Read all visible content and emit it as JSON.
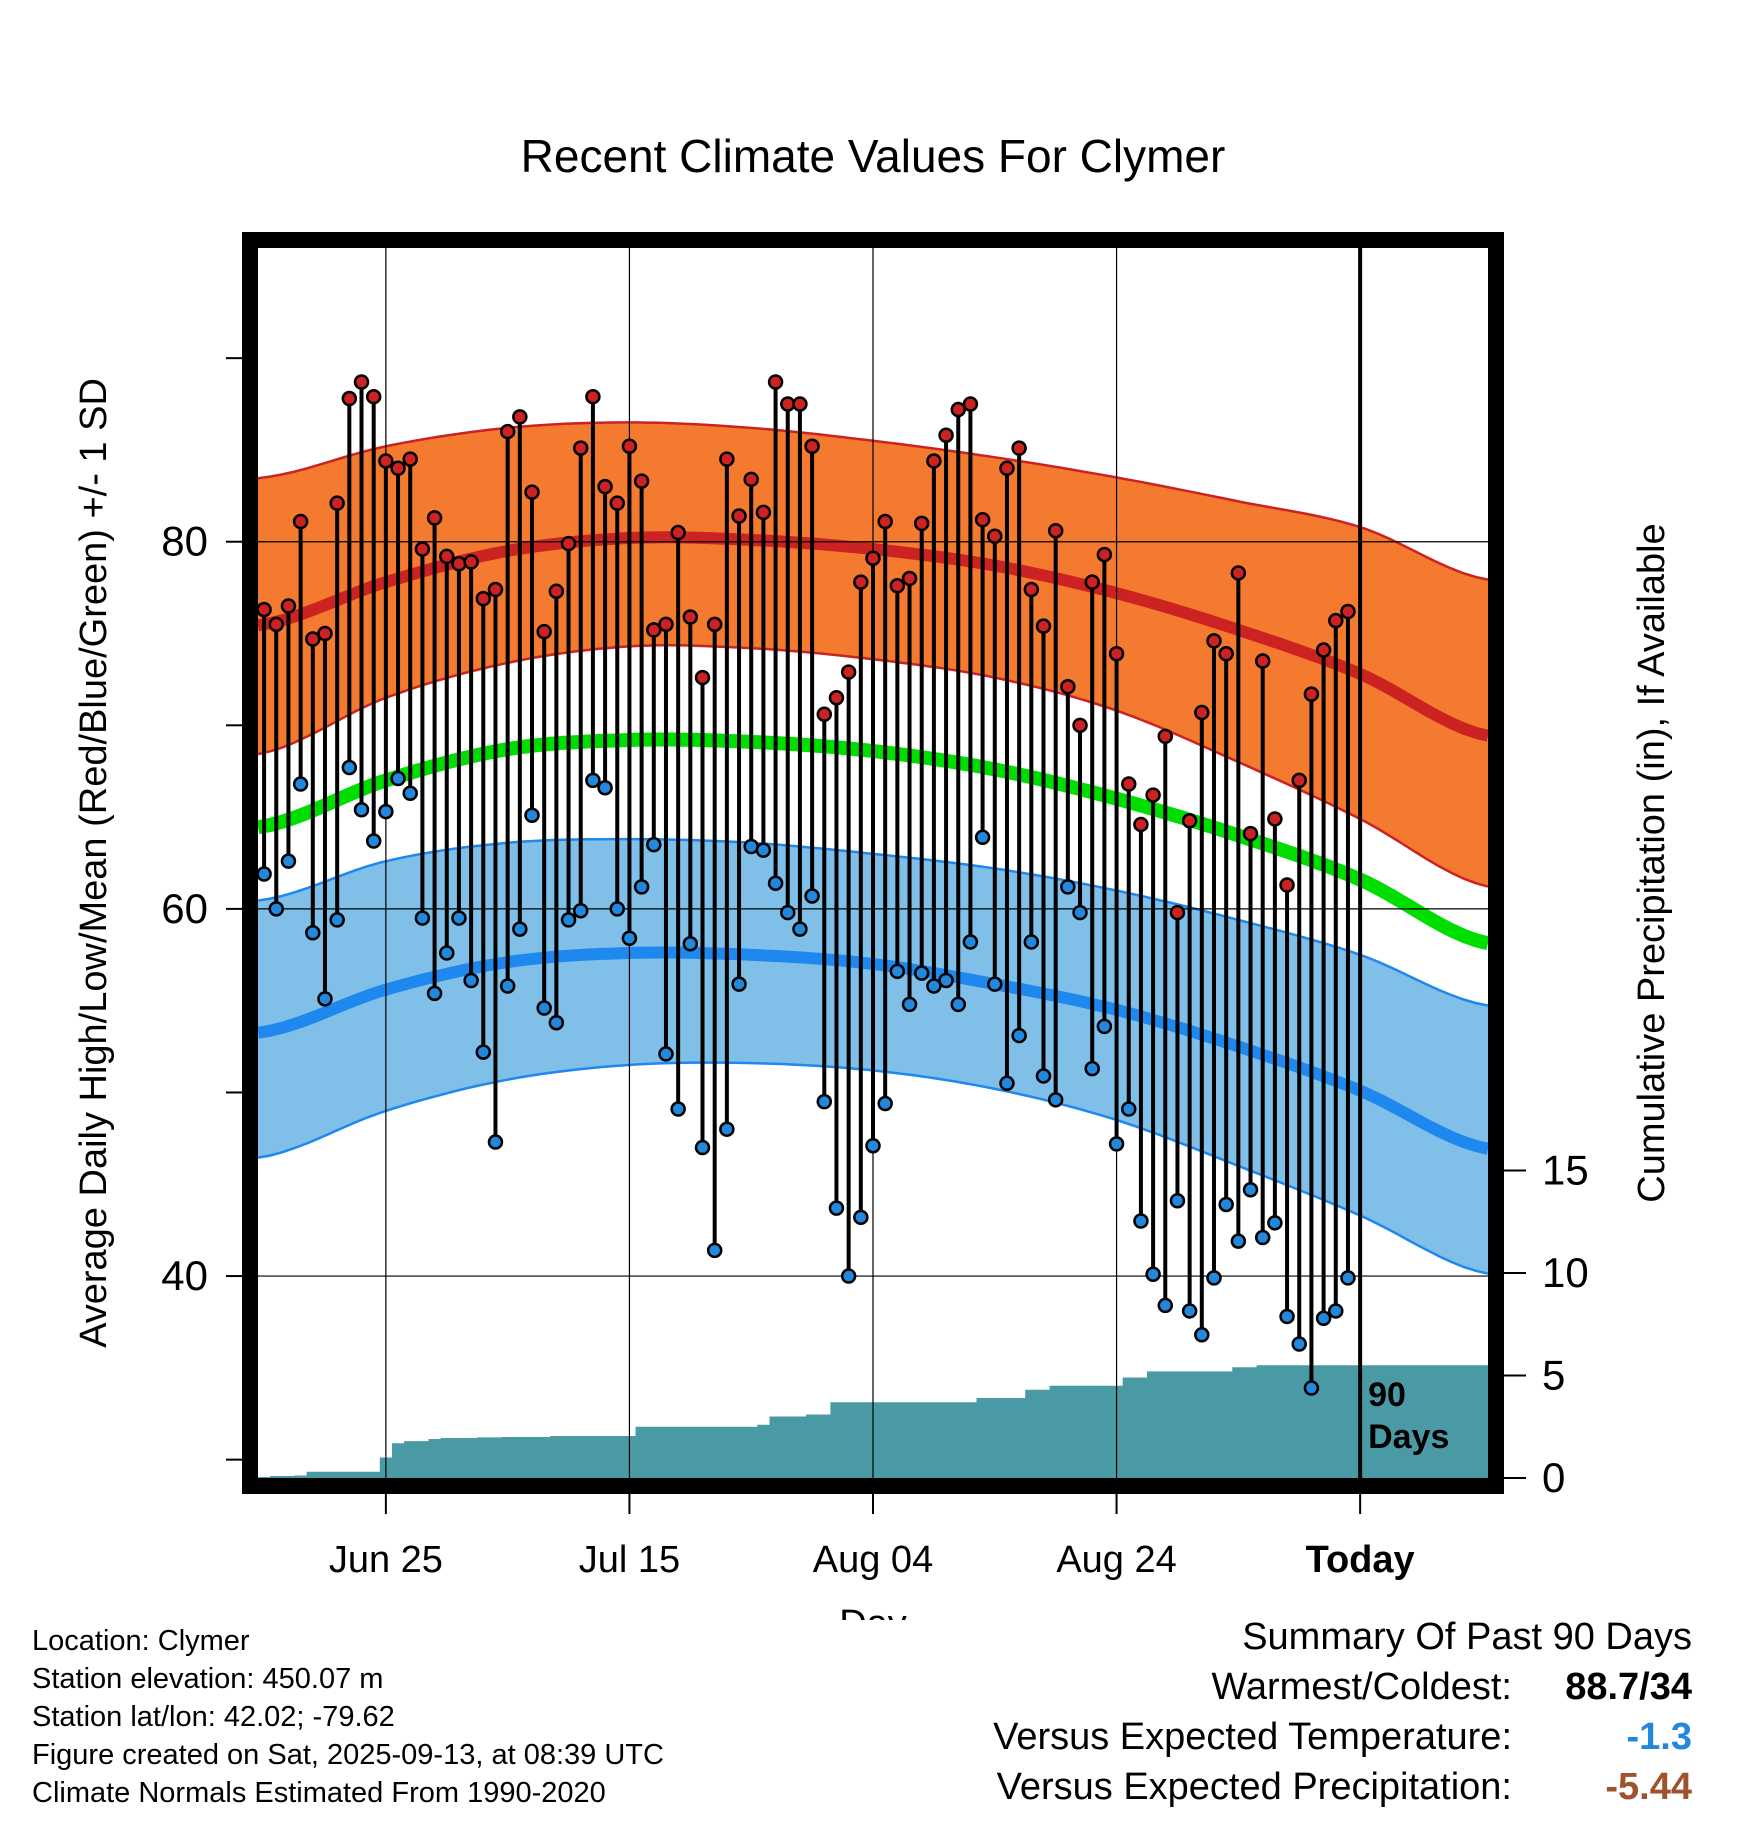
{
  "chart_data": {
    "type": "line",
    "title": "Recent Climate Values For Clymer",
    "xlabel": "Day",
    "ylabel": "Average Daily High/Low/Mean (Red/Blue/Green) +/- 1 SD",
    "y2label": "Cumulative Precipitation (in), If Available",
    "ylim": [
      29,
      96
    ],
    "y2lim": [
      0,
      60
    ],
    "yticks": [
      40,
      60,
      80
    ],
    "y2ticks": [
      0,
      5,
      10,
      15
    ],
    "xlim": [
      -0.5,
      100.5
    ],
    "xticks": [
      {
        "day": 10,
        "label": "Jun 25"
      },
      {
        "day": 30,
        "label": "Jul 15"
      },
      {
        "day": 50,
        "label": "Aug 04"
      },
      {
        "day": 70,
        "label": "Aug 24"
      },
      {
        "day": 90,
        "label": "Today"
      }
    ],
    "today_day": 90,
    "today_label_line1": "90",
    "today_label_line2": "Days",
    "grid": true,
    "normals_days": [
      0,
      10,
      20,
      30,
      40,
      50,
      60,
      70,
      80,
      90,
      100
    ],
    "normal_high": [
      75.5,
      77.8,
      79.5,
      80.2,
      80.1,
      79.6,
      78.7,
      77.2,
      75.2,
      72.8,
      69.5
    ],
    "normal_high_upper": [
      83.5,
      85.2,
      86.2,
      86.5,
      86.2,
      85.5,
      84.6,
      83.5,
      82.2,
      80.8,
      78.0
    ],
    "normal_high_lower": [
      68.5,
      71.5,
      73.4,
      74.3,
      74.2,
      73.6,
      72.6,
      70.8,
      68.0,
      64.9,
      61.3
    ],
    "normal_mean": [
      64.5,
      67.0,
      68.7,
      69.2,
      69.1,
      68.6,
      67.6,
      66.0,
      64.0,
      61.6,
      58.2
    ],
    "normal_low": [
      53.3,
      55.6,
      57.1,
      57.6,
      57.5,
      57.0,
      55.9,
      54.5,
      52.5,
      50.1,
      47.0
    ],
    "normal_low_upper": [
      60.5,
      62.6,
      63.6,
      63.8,
      63.6,
      63.0,
      62.2,
      61.0,
      59.4,
      57.5,
      54.8
    ],
    "normal_low_lower": [
      46.5,
      49.0,
      50.7,
      51.5,
      51.6,
      51.2,
      50.2,
      48.5,
      46.0,
      43.3,
      40.2
    ],
    "series": [
      {
        "name": "Daily High",
        "color": "#cc2222",
        "values": [
          76.3,
          75.5,
          76.5,
          81.1,
          74.7,
          75.0,
          82.1,
          87.8,
          88.7,
          87.9,
          84.4,
          84.0,
          84.5,
          79.6,
          81.3,
          79.2,
          78.8,
          78.9,
          76.9,
          77.4,
          86.0,
          86.8,
          82.7,
          75.1,
          77.3,
          79.9,
          85.1,
          87.9,
          83.0,
          82.1,
          85.2,
          83.3,
          75.2,
          75.5,
          80.5,
          75.9,
          72.6,
          75.5,
          84.5,
          81.4,
          83.4,
          81.6,
          88.7,
          87.5,
          87.5,
          85.2,
          70.6,
          71.5,
          72.9,
          77.8,
          79.1,
          81.1,
          77.6,
          78.0,
          81.0,
          84.4,
          85.8,
          87.2,
          87.5,
          81.2,
          80.3,
          84.0,
          85.1,
          77.4,
          75.4,
          80.6,
          72.1,
          70.0,
          77.8,
          79.3,
          73.9,
          66.8,
          64.6,
          66.2,
          69.4,
          59.8,
          64.8,
          70.7,
          74.6,
          73.9,
          78.3,
          64.1,
          73.5,
          64.9,
          61.3,
          67.0,
          71.7,
          74.1,
          75.7,
          76.2
        ]
      },
      {
        "name": "Daily Low",
        "color": "#2288dd",
        "values": [
          61.9,
          60.0,
          62.6,
          66.8,
          58.7,
          55.1,
          59.4,
          67.7,
          65.4,
          63.7,
          65.3,
          67.1,
          66.3,
          59.5,
          55.4,
          57.6,
          59.5,
          56.1,
          52.2,
          47.3,
          55.8,
          58.9,
          65.1,
          54.6,
          53.8,
          59.4,
          59.9,
          67.0,
          66.6,
          60.0,
          58.4,
          61.2,
          63.5,
          52.1,
          49.1,
          58.1,
          47.0,
          41.4,
          48.0,
          55.9,
          63.4,
          63.2,
          61.4,
          59.8,
          58.9,
          60.7,
          49.5,
          43.7,
          40.0,
          43.2,
          47.1,
          49.4,
          56.6,
          54.8,
          56.5,
          55.8,
          56.1,
          54.8,
          58.2,
          63.9,
          55.9,
          50.5,
          53.1,
          58.2,
          50.9,
          49.6,
          61.2,
          59.8,
          51.3,
          53.6,
          47.2,
          49.1,
          43.0,
          40.1,
          38.4,
          44.1,
          38.1,
          36.8,
          39.9,
          43.9,
          41.9,
          44.7,
          42.1,
          42.9,
          37.8,
          36.3,
          33.9,
          37.7,
          38.1,
          39.9
        ]
      },
      {
        "name": "Cumulative Precipitation",
        "color": "#4a9aa5",
        "values": [
          0.05,
          0.1,
          0.1,
          0.12,
          0.3,
          0.3,
          0.3,
          0.3,
          0.3,
          0.3,
          1.0,
          1.7,
          1.8,
          1.8,
          1.9,
          1.95,
          1.95,
          1.95,
          1.98,
          1.98,
          2.0,
          2.0,
          2.0,
          2.0,
          2.05,
          2.05,
          2.05,
          2.05,
          2.05,
          2.05,
          2.05,
          2.5,
          2.5,
          2.5,
          2.5,
          2.5,
          2.5,
          2.5,
          2.5,
          2.5,
          2.5,
          2.6,
          3.0,
          3.0,
          3.0,
          3.1,
          3.1,
          3.7,
          3.7,
          3.7,
          3.7,
          3.7,
          3.7,
          3.7,
          3.7,
          3.7,
          3.7,
          3.7,
          3.7,
          3.9,
          3.9,
          3.9,
          3.9,
          4.3,
          4.3,
          4.5,
          4.5,
          4.5,
          4.5,
          4.5,
          4.5,
          4.9,
          4.9,
          5.2,
          5.2,
          5.2,
          5.2,
          5.2,
          5.2,
          5.2,
          5.4,
          5.4,
          5.5,
          5.5,
          5.5,
          5.5,
          5.5,
          5.5,
          5.5,
          5.5,
          5.5,
          5.5,
          5.5,
          5.5,
          5.5,
          5.5,
          5.5,
          5.5,
          5.5,
          5.5,
          5.5
        ]
      }
    ],
    "colors": {
      "high_band": "#f47a30",
      "high_line": "#cc2222",
      "mean_line": "#00dd00",
      "low_band": "#80bfe8",
      "low_line": "#1e88ee",
      "precip": "#4a9aa5"
    }
  },
  "info": {
    "location": "Location: Clymer",
    "elevation": "Station elevation: 450.07 m",
    "latlon": "Station lat/lon: 42.02; -79.62",
    "created": "Figure created on Sat, 2025-09-13, at 08:39 UTC",
    "normals": "Climate Normals Estimated From 1990-2020"
  },
  "summary": {
    "title": "Summary Of Past 90 Days",
    "warmest_label": "Warmest/Coldest:",
    "warmest_value": "88.7/34",
    "temp_label": "Versus Expected Temperature:",
    "temp_value": "-1.3",
    "temp_color": "#2288dd",
    "precip_label": "Versus Expected Precipitation:",
    "precip_value": "-5.44",
    "precip_color": "#a0522d"
  }
}
